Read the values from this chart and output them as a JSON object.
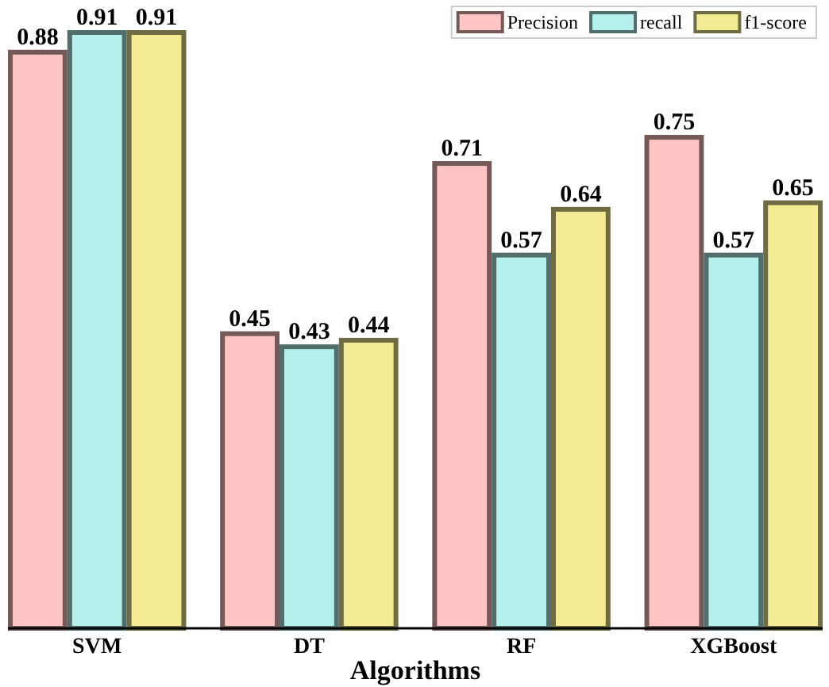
{
  "chart_data": {
    "type": "bar",
    "xlabel": "Algorithms",
    "categories": [
      "SVM",
      "DT",
      "RF",
      "XGBoost"
    ],
    "series": [
      {
        "name": "Precision",
        "color": "#ffc4c4",
        "values": [
          0.88,
          0.45,
          0.71,
          0.75
        ]
      },
      {
        "name": "recall",
        "color": "#b4f0ec",
        "values": [
          0.91,
          0.43,
          0.57,
          0.57
        ]
      },
      {
        "name": "f1-score",
        "color": "#f4ec94",
        "values": [
          0.91,
          0.44,
          0.64,
          0.65
        ]
      }
    ],
    "ylim": [
      0,
      0.95
    ],
    "data_labels": true,
    "legend": "top right"
  }
}
